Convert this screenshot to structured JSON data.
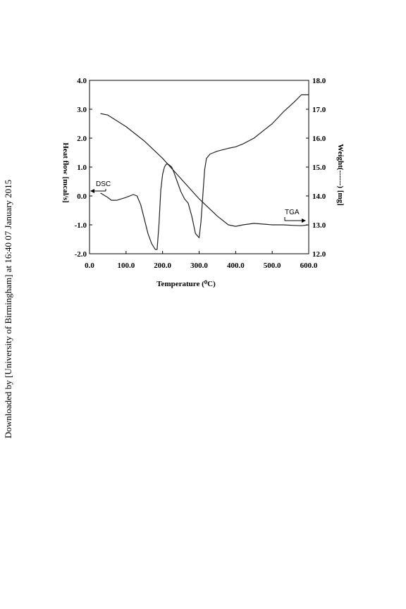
{
  "side_note": "Downloaded by [University of Birmingham] at 16:40 07 January 2015",
  "chart_data": {
    "type": "line",
    "xlabel": "Temperature (⁰C)",
    "ylabel_left": "Heat flow [mcal/s]",
    "ylabel_right": "Weight(------) [mg]",
    "xlim": [
      0,
      600
    ],
    "ylim_left": [
      -2,
      4
    ],
    "ylim_right": [
      12,
      18
    ],
    "x_ticks": [
      "0.0",
      "100.0",
      "200.0",
      "300.0",
      "400.0",
      "500.0",
      "600.0"
    ],
    "y_left_ticks": [
      "4.0",
      "3.0",
      "2.0",
      "1.0",
      "0.0",
      "-1.0",
      "-2.0"
    ],
    "y_right_ticks": [
      "18.0",
      "17.0",
      "16.0",
      "15.0",
      "14.0",
      "13.0",
      "12.0"
    ],
    "grid": false,
    "annotations": [
      {
        "text": "DSC",
        "arrow": "left"
      },
      {
        "text": "TGA",
        "arrow": "right"
      }
    ],
    "series": [
      {
        "axis": "left",
        "x": [
          30,
          50,
          60,
          75,
          100,
          120,
          130,
          140,
          150,
          160,
          170,
          180,
          185,
          190,
          195,
          200,
          205,
          210,
          215,
          220,
          225,
          230,
          240,
          250,
          260,
          270,
          280,
          290,
          300,
          305,
          310,
          315,
          320,
          330,
          340,
          350,
          380,
          400,
          420,
          450,
          480,
          500,
          530,
          560,
          580,
          600
        ],
        "y": [
          0.1,
          -0.05,
          -0.15,
          -0.15,
          -0.05,
          0.05,
          0.0,
          -0.3,
          -0.8,
          -1.3,
          -1.65,
          -1.85,
          -1.85,
          -1.0,
          0.2,
          0.75,
          1.0,
          1.1,
          1.1,
          1.05,
          1.0,
          0.85,
          0.5,
          0.15,
          -0.1,
          -0.25,
          -0.7,
          -1.3,
          -1.45,
          -0.9,
          0.0,
          0.9,
          1.3,
          1.45,
          1.5,
          1.55,
          1.65,
          1.7,
          1.8,
          2.0,
          2.3,
          2.5,
          2.9,
          3.25,
          3.5,
          3.5
        ]
      },
      {
        "axis": "right",
        "x": [
          30,
          50,
          100,
          150,
          200,
          250,
          300,
          350,
          380,
          400,
          420,
          450,
          500,
          530,
          560,
          580,
          600
        ],
        "y": [
          16.85,
          16.8,
          16.4,
          15.9,
          15.3,
          14.6,
          13.9,
          13.3,
          13.0,
          12.95,
          13.0,
          13.05,
          13.0,
          13.0,
          12.98,
          12.97,
          13.0
        ]
      }
    ]
  }
}
